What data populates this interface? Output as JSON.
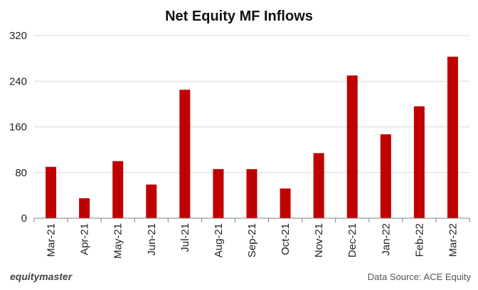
{
  "chart_data": {
    "type": "bar",
    "title": "Net Equity MF Inflows",
    "xlabel": "",
    "ylabel": "",
    "categories": [
      "Mar-21",
      "Apr-21",
      "May-21",
      "Jun-21",
      "Jul-21",
      "Aug-21",
      "Sep-21",
      "Oct-21",
      "Nov-21",
      "Dec-21",
      "Jan-22",
      "Feb-22",
      "Mar-22"
    ],
    "values": [
      90,
      35,
      100,
      59,
      225,
      86,
      86,
      52,
      114,
      250,
      147,
      196,
      283
    ],
    "ylim": [
      0,
      320
    ],
    "yticks": [
      "0",
      "80",
      "160",
      "240",
      "320"
    ],
    "grid": true,
    "bar_color": "#c00000"
  },
  "footer": {
    "brand": "equitymaster",
    "source": "Data Source: ACE Equity"
  }
}
